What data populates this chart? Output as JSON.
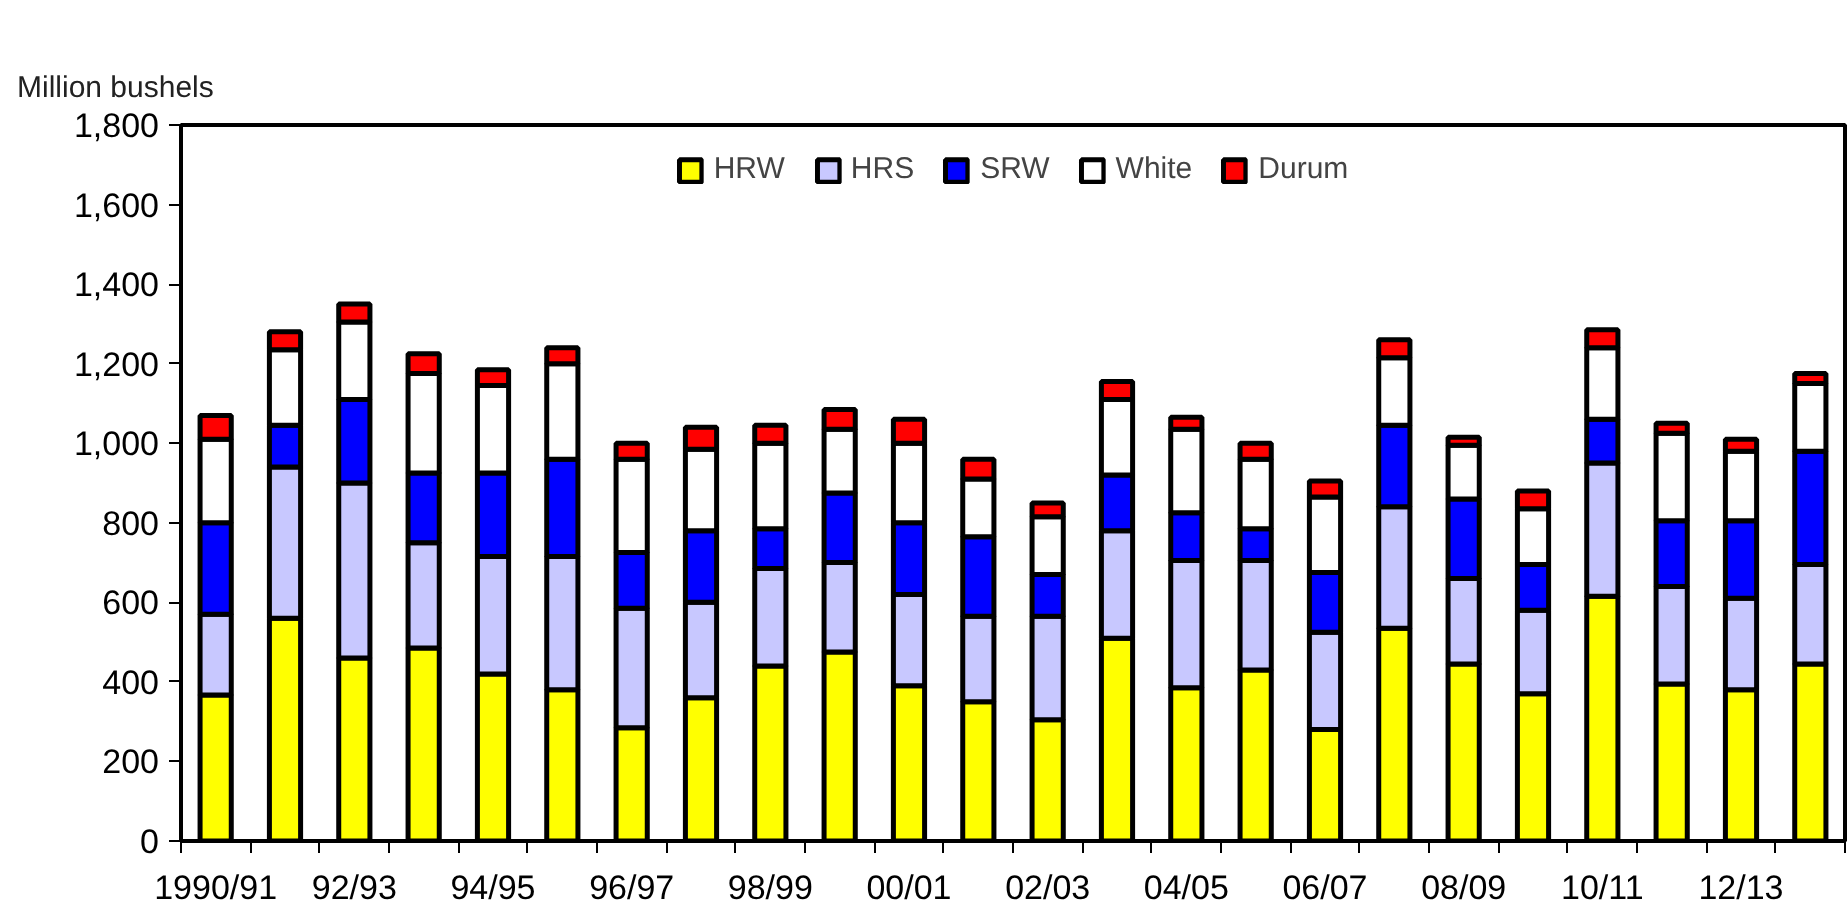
{
  "chart_data": {
    "type": "bar",
    "stacked": true,
    "ylabel": "Million bushels",
    "categories": [
      "1990/91",
      null,
      "92/93",
      null,
      "94/95",
      null,
      "96/97",
      null,
      "98/99",
      null,
      "00/01",
      null,
      "02/03",
      null,
      "04/05",
      null,
      "06/07",
      null,
      "08/09",
      null,
      "10/11",
      null,
      "12/13",
      null
    ],
    "series": [
      {
        "name": "HRW",
        "color": "#ffff00",
        "values": [
          367,
          560,
          460,
          485,
          420,
          380,
          285,
          360,
          440,
          475,
          390,
          350,
          305,
          510,
          385,
          430,
          280,
          535,
          445,
          370,
          615,
          395,
          380,
          445
        ]
      },
      {
        "name": "HRS",
        "color": "#c8c8ff",
        "values": [
          203,
          380,
          440,
          265,
          295,
          335,
          300,
          240,
          245,
          225,
          230,
          215,
          260,
          270,
          320,
          275,
          245,
          305,
          215,
          210,
          335,
          245,
          230,
          250
        ]
      },
      {
        "name": "SRW",
        "color": "#0000ff",
        "values": [
          230,
          105,
          210,
          175,
          210,
          245,
          140,
          180,
          100,
          175,
          180,
          200,
          105,
          140,
          120,
          80,
          150,
          205,
          200,
          115,
          110,
          165,
          195,
          285
        ]
      },
      {
        "name": "White",
        "color": "#ffffff",
        "values": [
          210,
          190,
          195,
          250,
          220,
          240,
          235,
          205,
          215,
          160,
          200,
          145,
          145,
          190,
          210,
          175,
          190,
          170,
          135,
          140,
          180,
          220,
          175,
          170
        ]
      },
      {
        "name": "Durum",
        "color": "#ff0000",
        "values": [
          60,
          45,
          45,
          50,
          40,
          40,
          40,
          55,
          45,
          50,
          60,
          50,
          35,
          45,
          30,
          40,
          40,
          45,
          20,
          45,
          45,
          25,
          30,
          25
        ]
      }
    ],
    "ylim": [
      0,
      1800
    ],
    "yticks": [
      0,
      200,
      400,
      600,
      800,
      {
        "value": 1000,
        "label": "1,000"
      },
      {
        "value": 1200,
        "label": "1,200"
      },
      {
        "value": 1400,
        "label": "1,400"
      },
      {
        "value": 1600,
        "label": "1,600"
      },
      {
        "value": 1800,
        "label": "1,800"
      }
    ],
    "legend": "top",
    "grid": false
  }
}
